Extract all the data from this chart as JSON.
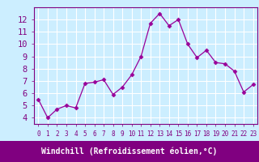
{
  "x": [
    0,
    1,
    2,
    3,
    4,
    5,
    6,
    7,
    8,
    9,
    10,
    11,
    12,
    13,
    14,
    15,
    16,
    17,
    18,
    19,
    20,
    21,
    22,
    23
  ],
  "y": [
    5.5,
    4.0,
    4.7,
    5.0,
    4.8,
    6.8,
    6.9,
    7.1,
    5.9,
    6.5,
    7.5,
    9.0,
    11.7,
    12.5,
    11.5,
    12.0,
    10.0,
    8.9,
    9.5,
    8.5,
    8.4,
    7.8,
    6.1,
    6.7
  ],
  "line_color": "#990099",
  "marker": "D",
  "marker_size": 2.5,
  "bg_color": "#cceeff",
  "grid_color": "#ffffff",
  "xlim": [
    -0.5,
    23.5
  ],
  "ylim": [
    3.5,
    13.0
  ],
  "yticks": [
    4,
    5,
    6,
    7,
    8,
    9,
    10,
    11,
    12
  ],
  "xtick_labels": [
    "0",
    "1",
    "2",
    "3",
    "4",
    "5",
    "6",
    "7",
    "8",
    "9",
    "10",
    "11",
    "12",
    "13",
    "14",
    "15",
    "16",
    "17",
    "18",
    "19",
    "20",
    "21",
    "22",
    "23"
  ],
  "xlabel": "Windchill (Refroidissement éolien,°C)",
  "xlabel_color": "#ffffff",
  "xlabel_bg": "#800080",
  "tick_color": "#800080",
  "axis_label_fontsize": 7.0,
  "tick_fontsize_y": 7.5,
  "tick_fontsize_x": 5.5
}
